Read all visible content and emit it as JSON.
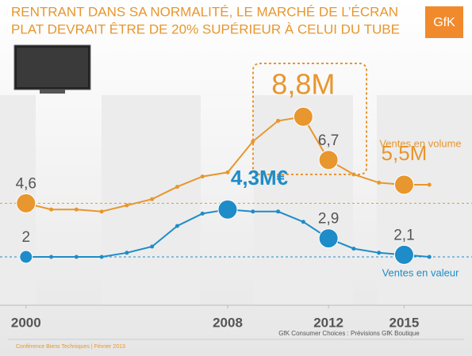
{
  "title": [
    "RENTRANT DANS SA NORMALITÉ, LE MARCHÉ DE L’ÉCRAN",
    "PLAT DEVRAIT ÊTRE DE 20% SUPÉRIEUR À CELUI DU TUBE"
  ],
  "logo": "GfK",
  "chart_data": {
    "type": "line",
    "x": [
      2000,
      2001,
      2002,
      2003,
      2004,
      2005,
      2006,
      2007,
      2008,
      2009,
      2010,
      2011,
      2012,
      2013,
      2014,
      2015,
      2016
    ],
    "xlim": [
      1999,
      2017
    ],
    "xticks": [
      2000,
      2008,
      2012,
      2015
    ],
    "ylim": [
      0,
      10
    ],
    "series": [
      {
        "name": "Ventes en volume",
        "color": "#e8962e",
        "values": [
          4.6,
          4.3,
          4.3,
          4.2,
          4.5,
          4.8,
          5.4,
          5.9,
          6.1,
          7.6,
          8.6,
          8.8,
          6.7,
          6.0,
          5.6,
          5.5,
          5.5
        ],
        "value_labels": [
          "4,6",
          null,
          null,
          null,
          null,
          null,
          null,
          null,
          null,
          null,
          null,
          "8,8M",
          "6,7",
          null,
          null,
          "5,5M",
          null
        ]
      },
      {
        "name": "Ventes en valeur",
        "color": "#1e8cc8",
        "values": [
          2.0,
          2.0,
          2.0,
          2.0,
          2.2,
          2.5,
          3.5,
          4.1,
          4.3,
          4.2,
          4.2,
          3.7,
          2.9,
          2.4,
          2.2,
          2.1,
          2.0
        ],
        "value_labels": [
          "2",
          null,
          null,
          null,
          null,
          null,
          null,
          null,
          "4,3M€",
          null,
          null,
          null,
          "2,9",
          null,
          null,
          "2,1",
          null
        ]
      }
    ],
    "source": "GfK Consumer Choices : Prévisions GfK Boutique"
  },
  "footer": "Conférence Biens Techniques | Février 2013"
}
